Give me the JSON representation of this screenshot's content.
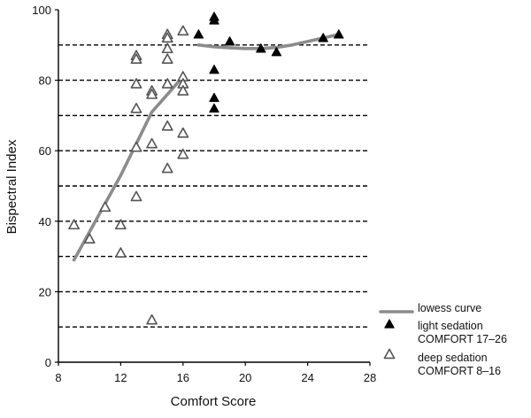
{
  "chart_data": {
    "type": "scatter",
    "xlabel": "Comfort Score",
    "ylabel": "Bispectral Index",
    "xlim": [
      8,
      28
    ],
    "ylim": [
      0,
      100
    ],
    "x_ticks": [
      8,
      12,
      16,
      20,
      24,
      28
    ],
    "y_ticks": [
      0,
      20,
      40,
      60,
      80,
      100
    ],
    "dashed_gridlines_y": [
      10,
      20,
      30,
      40,
      50,
      60,
      70,
      80,
      90
    ],
    "legend_position": "bottom-right",
    "series": [
      {
        "name": "lowess curve",
        "kind": "line",
        "color": "#8c8c8c",
        "segments": [
          {
            "x": [
              9,
              10,
              11,
              12,
              13,
              14,
              15,
              16
            ],
            "y": [
              29,
              37,
              45,
              53,
              62,
              71,
              76,
              81
            ]
          },
          {
            "x": [
              17,
              18,
              19,
              20,
              21,
              22,
              23,
              24,
              25,
              26
            ],
            "y": [
              90,
              89.5,
              89.2,
              89,
              89,
              89.3,
              90,
              91,
              92,
              93
            ]
          }
        ]
      },
      {
        "name": "light sedation COMFORT 17–26",
        "kind": "scatter",
        "marker": "filled-triangle",
        "color": "#000000",
        "x": [
          17,
          18,
          18,
          18,
          18,
          18,
          19,
          21,
          22,
          25,
          26
        ],
        "y": [
          93,
          98,
          97,
          83,
          75,
          72,
          91,
          89,
          88,
          92,
          93
        ]
      },
      {
        "name": "deep sedation COMFORT 8–16",
        "kind": "scatter",
        "marker": "open-triangle",
        "color": "#000000",
        "x": [
          9,
          10,
          11,
          12,
          12,
          13,
          13,
          13,
          13,
          13,
          13,
          14,
          14,
          14,
          14,
          15,
          15,
          15,
          15,
          15,
          15,
          15,
          16,
          16,
          16,
          16,
          16,
          16
        ],
        "y": [
          39,
          35,
          44,
          39,
          31,
          87,
          86,
          79,
          72,
          61,
          47,
          77,
          76,
          62,
          12,
          93,
          92,
          89,
          86,
          79,
          67,
          55,
          94,
          81,
          79,
          77,
          65,
          59
        ]
      }
    ]
  }
}
